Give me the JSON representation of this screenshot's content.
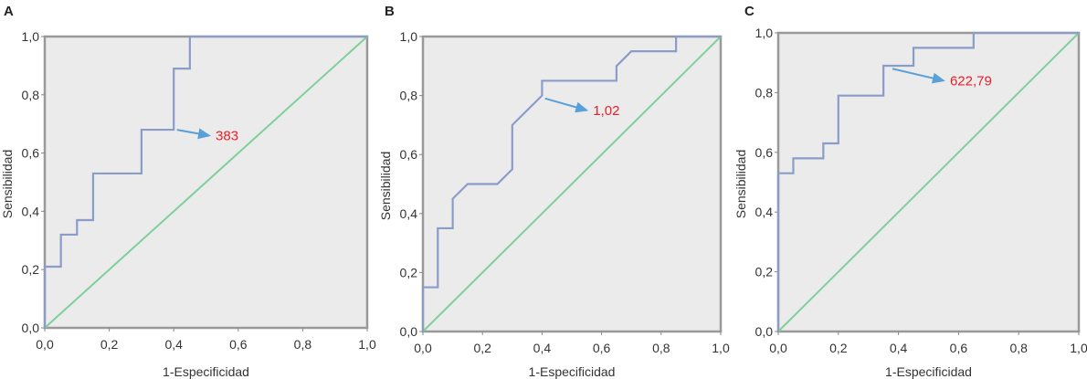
{
  "colors": {
    "plot_bg": "#ebebeb",
    "frame": "#999999",
    "roc": "#8a9cc8",
    "reference": "#7fd09a",
    "arrow": "#5aa0d8",
    "annotation": "#e8202a"
  },
  "chart_data": [
    {
      "type": "line",
      "panel": "A",
      "xlabel": "1-Especificidad",
      "ylabel": "Sensibilidad",
      "xlim": [
        0,
        1
      ],
      "ylim": [
        0,
        1
      ],
      "xticks": [
        "0,0",
        "0,2",
        "0,4",
        "0,6",
        "0,8",
        "1,0"
      ],
      "yticks": [
        "0,0",
        "0,2",
        "0,4",
        "0,6",
        "0,8",
        "1,0"
      ],
      "series": [
        {
          "name": "ROC",
          "x": [
            0,
            0,
            0.05,
            0.05,
            0.1,
            0.1,
            0.15,
            0.15,
            0.3,
            0.3,
            0.4,
            0.4,
            0.45,
            0.45,
            1
          ],
          "y": [
            0,
            0.21,
            0.21,
            0.32,
            0.32,
            0.37,
            0.37,
            0.53,
            0.53,
            0.68,
            0.68,
            0.89,
            0.89,
            1,
            1
          ]
        },
        {
          "name": "Reference",
          "x": [
            0,
            1
          ],
          "y": [
            0,
            1
          ]
        }
      ],
      "annotation": {
        "text": "383",
        "from": [
          0.41,
          0.68
        ],
        "to": [
          0.51,
          0.66
        ]
      }
    },
    {
      "type": "line",
      "panel": "B",
      "xlabel": "1-Especificidad",
      "ylabel": "Sensibilidad",
      "xlim": [
        0,
        1
      ],
      "ylim": [
        0,
        1
      ],
      "xticks": [
        "0,0",
        "0,2",
        "0,4",
        "0,6",
        "0,8",
        "1,0"
      ],
      "yticks": [
        "0,0",
        "0,2",
        "0,4",
        "0,6",
        "0,8",
        "1,0"
      ],
      "series": [
        {
          "name": "ROC",
          "x": [
            0,
            0,
            0.05,
            0.05,
            0.1,
            0.1,
            0.15,
            0.25,
            0.3,
            0.3,
            0.4,
            0.4,
            0.65,
            0.65,
            0.7,
            0.85,
            0.85,
            1
          ],
          "y": [
            0,
            0.15,
            0.15,
            0.35,
            0.35,
            0.45,
            0.5,
            0.5,
            0.55,
            0.7,
            0.8,
            0.85,
            0.85,
            0.9,
            0.95,
            0.95,
            1,
            1
          ]
        },
        {
          "name": "Reference",
          "x": [
            0,
            1
          ],
          "y": [
            0,
            1
          ]
        }
      ],
      "annotation": {
        "text": "1,02",
        "from": [
          0.41,
          0.79
        ],
        "to": [
          0.55,
          0.75
        ]
      }
    },
    {
      "type": "line",
      "panel": "C",
      "xlabel": "1-Especificidad",
      "ylabel": "Sensibilidad",
      "xlim": [
        0,
        1
      ],
      "ylim": [
        0,
        1
      ],
      "xticks": [
        "0,0",
        "0,2",
        "0,4",
        "0,6",
        "0,8",
        "1,0"
      ],
      "yticks": [
        "0,0",
        "0,2",
        "0,4",
        "0,6",
        "0,8",
        "1,0"
      ],
      "series": [
        {
          "name": "ROC",
          "x": [
            0,
            0,
            0.05,
            0.05,
            0.15,
            0.15,
            0.2,
            0.2,
            0.35,
            0.35,
            0.45,
            0.45,
            0.65,
            0.65,
            1
          ],
          "y": [
            0,
            0.53,
            0.53,
            0.58,
            0.58,
            0.63,
            0.63,
            0.79,
            0.79,
            0.89,
            0.89,
            0.95,
            0.95,
            1,
            1
          ]
        },
        {
          "name": "Reference",
          "x": [
            0,
            1
          ],
          "y": [
            0,
            1
          ]
        }
      ],
      "annotation": {
        "text": "622,79",
        "from": [
          0.38,
          0.88
        ],
        "to": [
          0.55,
          0.84
        ]
      }
    }
  ]
}
